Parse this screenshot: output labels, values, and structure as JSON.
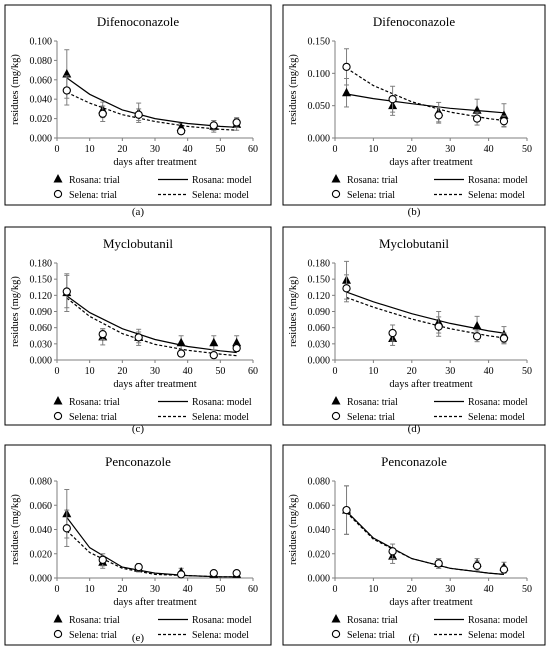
{
  "figure": {
    "legend_labels": {
      "rosana_trial": "Rosana: trial",
      "rosana_model": "Rosana: model",
      "selena_trial": "Selena: trial",
      "selena_model": "Selena: model"
    }
  },
  "chart_data": [
    {
      "panel_label": "(a)",
      "type": "scatter",
      "title": "Difenoconazole",
      "xlabel": "days after treatment",
      "ylabel": "residues (mg/kg)",
      "xlim": [
        0,
        60
      ],
      "xticks": [
        "0",
        "10",
        "20",
        "30",
        "40",
        "50",
        "60"
      ],
      "ylim": [
        0,
        0.1
      ],
      "yticks": [
        "0.000",
        "0.020",
        "0.040",
        "0.060",
        "0.080",
        "0.100"
      ],
      "legend_position": "bottom",
      "series": [
        {
          "name": "Rosana: trial",
          "kind": "trial",
          "marker": "triangle",
          "x": [
            3,
            14,
            25,
            38,
            48,
            55
          ],
          "y": [
            0.066,
            0.029,
            0.026,
            0.011,
            0.012,
            0.014
          ],
          "err": [
            0.025,
            0.008,
            0.01,
            0.004,
            0.006,
            0.006
          ]
        },
        {
          "name": "Selena: trial",
          "kind": "trial",
          "marker": "circle",
          "x": [
            3,
            14,
            25,
            38,
            48,
            55
          ],
          "y": [
            0.049,
            0.025,
            0.024,
            0.007,
            0.013,
            0.016
          ],
          "err": [
            0.015,
            0.008,
            0.006,
            0.003,
            0.005,
            0.005
          ]
        },
        {
          "name": "Rosana: model",
          "kind": "model",
          "dash": false,
          "x": [
            3,
            10,
            20,
            30,
            40,
            50,
            55
          ],
          "y": [
            0.062,
            0.045,
            0.029,
            0.02,
            0.015,
            0.012,
            0.011
          ]
        },
        {
          "name": "Selena: model",
          "kind": "model",
          "dash": true,
          "x": [
            3,
            10,
            20,
            30,
            40,
            50,
            55
          ],
          "y": [
            0.047,
            0.036,
            0.024,
            0.017,
            0.012,
            0.009,
            0.008
          ]
        }
      ]
    },
    {
      "panel_label": "(b)",
      "type": "scatter",
      "title": "Difenoconazole",
      "xlabel": "days after treatment",
      "ylabel": "residues (mg/kg)",
      "xlim": [
        0,
        50
      ],
      "xticks": [
        "0",
        "10",
        "20",
        "30",
        "40",
        "50"
      ],
      "ylim": [
        0,
        0.15
      ],
      "yticks": [
        "0.000",
        "0.050",
        "0.100",
        "0.150"
      ],
      "legend_position": "bottom",
      "series": [
        {
          "name": "Rosana: trial",
          "kind": "trial",
          "marker": "triangle",
          "x": [
            3,
            15,
            27,
            37,
            44
          ],
          "y": [
            0.07,
            0.05,
            0.04,
            0.043,
            0.035
          ],
          "err": [
            0.022,
            0.015,
            0.015,
            0.017,
            0.018
          ]
        },
        {
          "name": "Selena: trial",
          "kind": "trial",
          "marker": "circle",
          "x": [
            3,
            15,
            27,
            37,
            44
          ],
          "y": [
            0.11,
            0.06,
            0.035,
            0.03,
            0.026
          ],
          "err": [
            0.028,
            0.02,
            0.012,
            0.01,
            0.008
          ]
        },
        {
          "name": "Rosana: model",
          "kind": "model",
          "dash": false,
          "x": [
            3,
            10,
            20,
            30,
            40,
            44
          ],
          "y": [
            0.068,
            0.061,
            0.053,
            0.046,
            0.041,
            0.039
          ]
        },
        {
          "name": "Selena: model",
          "kind": "model",
          "dash": true,
          "x": [
            3,
            10,
            20,
            30,
            40,
            44
          ],
          "y": [
            0.108,
            0.081,
            0.056,
            0.04,
            0.03,
            0.027
          ]
        }
      ]
    },
    {
      "panel_label": "(c)",
      "type": "scatter",
      "title": "Myclobutanil",
      "xlabel": "days after treatment",
      "ylabel": "residues (mg/kg)",
      "xlim": [
        0,
        60
      ],
      "xticks": [
        "0",
        "10",
        "20",
        "30",
        "40",
        "50",
        "60"
      ],
      "ylim": [
        0,
        0.18
      ],
      "yticks": [
        "0.000",
        "0.030",
        "0.060",
        "0.090",
        "0.120",
        "0.150",
        "0.180"
      ],
      "legend_position": "bottom",
      "series": [
        {
          "name": "Rosana: trial",
          "kind": "trial",
          "marker": "triangle",
          "x": [
            3,
            14,
            25,
            38,
            48,
            55
          ],
          "y": [
            0.125,
            0.043,
            0.042,
            0.032,
            0.032,
            0.032
          ],
          "err": [
            0.035,
            0.015,
            0.015,
            0.013,
            0.013,
            0.013
          ]
        },
        {
          "name": "Selena: trial",
          "kind": "trial",
          "marker": "circle",
          "x": [
            3,
            14,
            25,
            38,
            48,
            55
          ],
          "y": [
            0.127,
            0.048,
            0.042,
            0.012,
            0.009,
            0.022
          ],
          "err": [
            0.03,
            0.01,
            0.01,
            0.005,
            0.004,
            0.006
          ]
        },
        {
          "name": "Rosana: model",
          "kind": "model",
          "dash": false,
          "x": [
            3,
            10,
            20,
            30,
            40,
            50,
            55
          ],
          "y": [
            0.119,
            0.088,
            0.058,
            0.038,
            0.025,
            0.017,
            0.014
          ]
        },
        {
          "name": "Selena: model",
          "kind": "model",
          "dash": true,
          "x": [
            3,
            10,
            20,
            30,
            40,
            50,
            55
          ],
          "y": [
            0.115,
            0.081,
            0.049,
            0.029,
            0.018,
            0.011,
            0.008
          ]
        }
      ]
    },
    {
      "panel_label": "(d)",
      "type": "scatter",
      "title": "Myclobutanil",
      "xlabel": "days after treatment",
      "ylabel": "residues (mg/kg)",
      "xlim": [
        0,
        50
      ],
      "xticks": [
        "0",
        "10",
        "20",
        "30",
        "40",
        "50"
      ],
      "ylim": [
        0,
        0.18
      ],
      "yticks": [
        "0.000",
        "0.030",
        "0.060",
        "0.090",
        "0.120",
        "0.150",
        "0.180"
      ],
      "legend_position": "bottom",
      "series": [
        {
          "name": "Rosana: trial",
          "kind": "trial",
          "marker": "triangle",
          "x": [
            3,
            15,
            27,
            37,
            44
          ],
          "y": [
            0.148,
            0.04,
            0.07,
            0.063,
            0.047
          ],
          "err": [
            0.035,
            0.013,
            0.02,
            0.018,
            0.015
          ]
        },
        {
          "name": "Selena: trial",
          "kind": "trial",
          "marker": "circle",
          "x": [
            3,
            15,
            27,
            37,
            44
          ],
          "y": [
            0.133,
            0.05,
            0.062,
            0.044,
            0.04
          ],
          "err": [
            0.025,
            0.015,
            0.018,
            0.01,
            0.01
          ]
        },
        {
          "name": "Rosana: model",
          "kind": "model",
          "dash": false,
          "x": [
            3,
            10,
            20,
            30,
            40,
            44
          ],
          "y": [
            0.126,
            0.108,
            0.086,
            0.068,
            0.054,
            0.05
          ]
        },
        {
          "name": "Selena: model",
          "kind": "model",
          "dash": true,
          "x": [
            3,
            10,
            20,
            30,
            40,
            44
          ],
          "y": [
            0.116,
            0.098,
            0.076,
            0.058,
            0.045,
            0.041
          ]
        }
      ]
    },
    {
      "panel_label": "(e)",
      "type": "scatter",
      "title": "Penconazole",
      "xlabel": "days after treatment",
      "ylabel": "residues (mg/kg)",
      "xlim": [
        0,
        60
      ],
      "xticks": [
        "0",
        "10",
        "20",
        "30",
        "40",
        "50",
        "60"
      ],
      "ylim": [
        0,
        0.08
      ],
      "yticks": [
        "0.000",
        "0.020",
        "0.040",
        "0.060",
        "0.080"
      ],
      "legend_position": "bottom",
      "series": [
        {
          "name": "Rosana: trial",
          "kind": "trial",
          "marker": "triangle",
          "x": [
            3,
            14,
            25,
            38,
            48,
            55
          ],
          "y": [
            0.053,
            0.013,
            0.008,
            0.005,
            0.003,
            0.003
          ],
          "err": [
            0.02,
            0.005,
            0.003,
            0.003,
            0.002,
            0.002
          ]
        },
        {
          "name": "Selena: trial",
          "kind": "trial",
          "marker": "circle",
          "x": [
            3,
            14,
            25,
            38,
            48,
            55
          ],
          "y": [
            0.041,
            0.015,
            0.009,
            0.003,
            0.004,
            0.004
          ],
          "err": [
            0.015,
            0.005,
            0.003,
            0.002,
            0.002,
            0.002
          ]
        },
        {
          "name": "Rosana: model",
          "kind": "model",
          "dash": false,
          "x": [
            3,
            10,
            20,
            30,
            40,
            50,
            55
          ],
          "y": [
            0.05,
            0.025,
            0.009,
            0.004,
            0.002,
            0.001,
            0.001
          ]
        },
        {
          "name": "Selena: model",
          "kind": "model",
          "dash": true,
          "x": [
            3,
            10,
            20,
            30,
            40,
            50,
            55
          ],
          "y": [
            0.039,
            0.021,
            0.008,
            0.003,
            0.002,
            0.001,
            0.001
          ]
        }
      ]
    },
    {
      "panel_label": "(f)",
      "type": "scatter",
      "title": "Penconazole",
      "xlabel": "days after treatment",
      "ylabel": "residues (mg/kg)",
      "xlim": [
        0,
        50
      ],
      "xticks": [
        "0",
        "10",
        "20",
        "30",
        "40",
        "50"
      ],
      "ylim": [
        0,
        0.08
      ],
      "yticks": [
        "0.000",
        "0.020",
        "0.040",
        "0.060",
        "0.080"
      ],
      "legend_position": "bottom",
      "series": [
        {
          "name": "Rosana: trial",
          "kind": "trial",
          "marker": "triangle",
          "x": [
            3,
            15,
            27,
            37,
            44
          ],
          "y": [
            0.056,
            0.018,
            0.012,
            0.012,
            0.009
          ],
          "err": [
            0.02,
            0.006,
            0.004,
            0.004,
            0.004
          ]
        },
        {
          "name": "Selena: trial",
          "kind": "trial",
          "marker": "circle",
          "x": [
            3,
            15,
            27,
            37,
            44
          ],
          "y": [
            0.056,
            0.022,
            0.012,
            0.01,
            0.007
          ],
          "err": [
            0.02,
            0.006,
            0.004,
            0.004,
            0.003
          ]
        },
        {
          "name": "Rosana: model",
          "kind": "model",
          "dash": false,
          "x": [
            3,
            10,
            20,
            30,
            40,
            44
          ],
          "y": [
            0.055,
            0.033,
            0.016,
            0.008,
            0.004,
            0.003
          ]
        },
        {
          "name": "Selena: model",
          "kind": "model",
          "dash": true,
          "x": [
            3,
            10,
            20,
            30,
            40,
            44
          ],
          "y": [
            0.054,
            0.032,
            0.016,
            0.008,
            0.004,
            0.003
          ]
        }
      ]
    }
  ]
}
